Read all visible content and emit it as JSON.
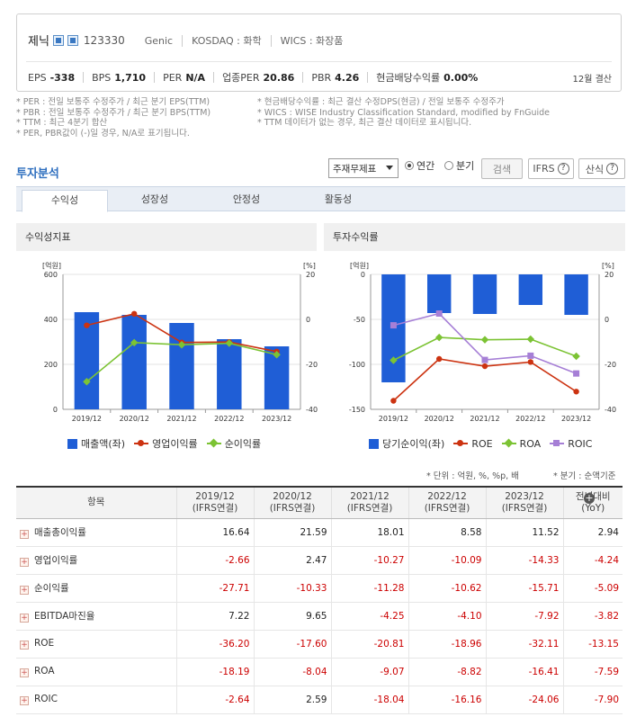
{
  "company": {
    "name": "제닉",
    "code": "123330",
    "group": "Genic",
    "market": "KOSDAQ : 화학",
    "wics": "WICS : 화장품"
  },
  "metrics": [
    {
      "label": "EPS",
      "value": "-338"
    },
    {
      "label": "BPS",
      "value": "1,710"
    },
    {
      "label": "PER",
      "value": "N/A"
    },
    {
      "label": "업종PER",
      "value": "20.86"
    },
    {
      "label": "PBR",
      "value": "4.26"
    },
    {
      "label": "현금배당수익률",
      "value": "0.00%"
    }
  ],
  "settle": "12월 결산",
  "notes": {
    "left": [
      "* PER : 전일 보통주 수정주가 / 최근 분기 EPS(TTM)",
      "* PBR : 전일 보통주 수정주가 / 최근 분기 BPS(TTM)",
      "* TTM : 최근 4분기 합산",
      "* PER, PBR값이 (-)일 경우, N/A로 표기됩니다."
    ],
    "right": [
      "* 현금배당수익률 : 최근 결산 수정DPS(현금) / 전일 보통주 수정주가",
      "* WICS : WISE Industry Classification Standard, modified by FnGuide",
      "* TTM 데이터가 없는 경우, 최근 결산 데이터로 표시됩니다."
    ]
  },
  "section_title": "투자분석",
  "controls": {
    "select": "주재무제표",
    "annual": "연간",
    "quarter": "분기",
    "search": "검색",
    "ifrs": "IFRS",
    "formula": "산식"
  },
  "tabs": [
    "수익성",
    "성장성",
    "안정성",
    "활동성"
  ],
  "chart1": {
    "title": "수익성지표"
  },
  "chart2": {
    "title": "투자수익률"
  },
  "chart_data": [
    {
      "type": "bar",
      "title": "수익성지표",
      "categories": [
        "2019/12",
        "2020/12",
        "2021/12",
        "2022/12",
        "2023/12"
      ],
      "y_left_unit": "[억원]",
      "y_right_unit": "[%]",
      "ylim_left": [
        0,
        600
      ],
      "ylim_right": [
        -40,
        20
      ],
      "left_ticks": [
        "600",
        "400",
        "200",
        "0"
      ],
      "right_ticks": [
        "20",
        "0",
        "-20",
        "-40"
      ],
      "series": [
        {
          "name": "매출액(좌)",
          "type": "bar",
          "axis": "left",
          "color": "#1f5ed6",
          "values": [
            432,
            420,
            384,
            312,
            280
          ]
        },
        {
          "name": "영업이익률",
          "type": "line",
          "axis": "right",
          "color": "#cc3311",
          "values": [
            -2.66,
            2.47,
            -10.27,
            -10.09,
            -14.33
          ]
        },
        {
          "name": "순이익률",
          "type": "line",
          "axis": "right",
          "color": "#7cc334",
          "values": [
            -27.71,
            -10.33,
            -11.28,
            -10.62,
            -15.71
          ]
        }
      ]
    },
    {
      "type": "bar",
      "title": "투자수익률",
      "categories": [
        "2019/12",
        "2020/12",
        "2021/12",
        "2022/12",
        "2023/12"
      ],
      "y_left_unit": "[억원]",
      "y_right_unit": "[%]",
      "ylim_left": [
        -150,
        0
      ],
      "ylim_right": [
        -40,
        20
      ],
      "left_ticks": [
        "0",
        "-50",
        "-100",
        "-150"
      ],
      "right_ticks": [
        "20",
        "0",
        "-20",
        "-40"
      ],
      "series": [
        {
          "name": "당기순이익(좌)",
          "type": "bar",
          "axis": "left",
          "color": "#1f5ed6",
          "values": [
            -120,
            -43,
            -44,
            -34,
            -45
          ]
        },
        {
          "name": "ROE",
          "type": "line",
          "axis": "right",
          "color": "#cc3311",
          "values": [
            -36.2,
            -17.6,
            -20.81,
            -18.96,
            -32.11
          ]
        },
        {
          "name": "ROA",
          "type": "line",
          "axis": "right",
          "color": "#7cc334",
          "values": [
            -18.19,
            -8.04,
            -9.07,
            -8.82,
            -16.41
          ]
        },
        {
          "name": "ROIC",
          "type": "line",
          "axis": "right",
          "color": "#a67fd6",
          "values": [
            -2.64,
            2.59,
            -18.04,
            -16.16,
            -24.06
          ]
        }
      ]
    }
  ],
  "unit_note": "* 단위 : 억원, %, %p, 배",
  "unit_note2": "* 분기 : 순액기준",
  "table": {
    "header_item": "항목",
    "columns": [
      {
        "year": "2019/12",
        "std": "(IFRS연결)"
      },
      {
        "year": "2020/12",
        "std": "(IFRS연결)"
      },
      {
        "year": "2021/12",
        "std": "(IFRS연결)"
      },
      {
        "year": "2022/12",
        "std": "(IFRS연결)"
      },
      {
        "year": "2023/12",
        "std": "(IFRS연결)"
      },
      {
        "year": "전년대비",
        "std": "(YoY)"
      }
    ],
    "rows": [
      {
        "name": "매출총이익률",
        "values": [
          "16.64",
          "21.59",
          "18.01",
          "8.58",
          "11.52",
          "2.94"
        ]
      },
      {
        "name": "영업이익률",
        "values": [
          "-2.66",
          "2.47",
          "-10.27",
          "-10.09",
          "-14.33",
          "-4.24"
        ]
      },
      {
        "name": "순이익률",
        "values": [
          "-27.71",
          "-10.33",
          "-11.28",
          "-10.62",
          "-15.71",
          "-5.09"
        ]
      },
      {
        "name": "EBITDA마진율",
        "values": [
          "7.22",
          "9.65",
          "-4.25",
          "-4.10",
          "-7.92",
          "-3.82"
        ]
      },
      {
        "name": "ROE",
        "values": [
          "-36.20",
          "-17.60",
          "-20.81",
          "-18.96",
          "-32.11",
          "-13.15"
        ]
      },
      {
        "name": "ROA",
        "values": [
          "-18.19",
          "-8.04",
          "-9.07",
          "-8.82",
          "-16.41",
          "-7.59"
        ]
      },
      {
        "name": "ROIC",
        "values": [
          "-2.64",
          "2.59",
          "-18.04",
          "-16.16",
          "-24.06",
          "-7.90"
        ]
      }
    ]
  }
}
